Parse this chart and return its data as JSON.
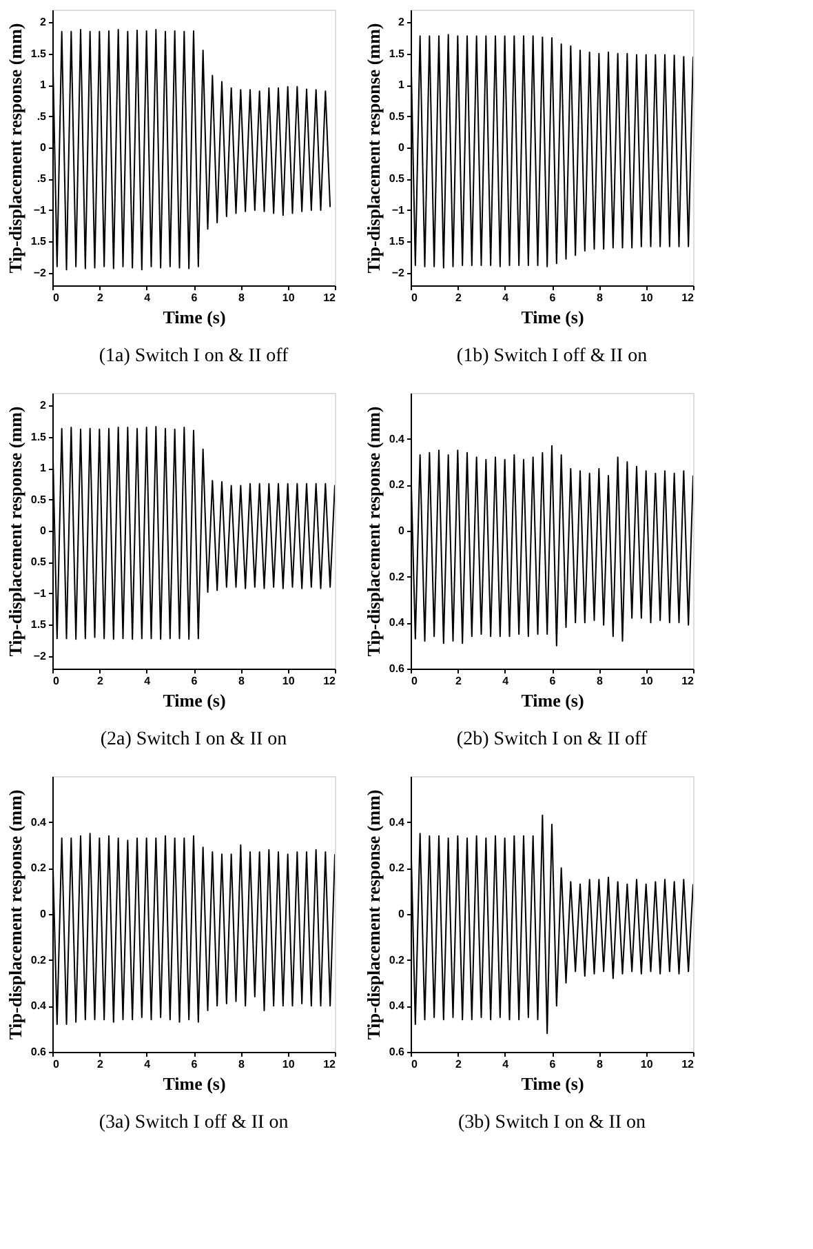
{
  "chart_data": [
    {
      "type": "line",
      "title": "(1a) Switch I on & II off",
      "xlabel": "Time (s)",
      "ylabel": "Tip-displacement response (mm)",
      "color": "#000000",
      "grid": false,
      "xlim": [
        0,
        12
      ],
      "xticks": [
        0,
        2,
        4,
        6,
        8,
        10,
        12
      ],
      "ylim": [
        -2.2,
        2.2
      ],
      "yticks": [
        2,
        1.5,
        1,
        {
          "value": 0.5,
          "label": ".5"
        },
        0,
        {
          "value": -0.5,
          "label": ".5"
        },
        -1,
        {
          "value": -1.5,
          "label": "1.5"
        },
        -2
      ],
      "x": [
        0,
        0.2,
        0.4,
        0.6,
        0.8,
        1,
        1.2,
        1.4,
        1.6,
        1.8,
        2,
        2.2,
        2.4,
        2.6,
        2.8,
        3,
        3.2,
        3.4,
        3.6,
        3.8,
        4,
        4.2,
        4.4,
        4.6,
        4.8,
        5,
        5.2,
        5.4,
        5.6,
        5.8,
        6,
        6.2,
        6.4,
        6.6,
        6.8,
        7,
        7.2,
        7.4,
        7.6,
        7.8,
        8,
        8.2,
        8.4,
        8.6,
        8.8,
        9,
        9.2,
        9.4,
        9.6,
        9.8,
        10,
        10.2,
        10.4,
        10.6,
        10.8,
        11,
        11.2,
        11.4,
        11.6,
        11.8
      ],
      "values": [
        1.8,
        -1.9,
        1.85,
        -1.95,
        1.85,
        -1.9,
        1.88,
        -1.93,
        1.85,
        -1.92,
        1.85,
        -1.9,
        1.86,
        -1.93,
        1.88,
        -1.9,
        1.85,
        -1.92,
        1.87,
        -1.95,
        1.86,
        -1.9,
        1.88,
        -1.92,
        1.85,
        -1.9,
        1.86,
        -1.92,
        1.85,
        -1.93,
        1.86,
        -1.9,
        1.55,
        -1.3,
        1.15,
        -1.2,
        1.05,
        -1.1,
        0.95,
        -1.05,
        0.92,
        -1.02,
        0.92,
        -1.0,
        0.9,
        -1.02,
        0.95,
        -1.05,
        0.95,
        -1.08,
        0.97,
        -1.05,
        0.97,
        -1.02,
        0.93,
        -1.0,
        0.92,
        -1.0,
        0.9,
        -0.95
      ]
    },
    {
      "type": "line",
      "title": "(1b) Switch I off & II on",
      "xlabel": "Time (s)",
      "ylabel": "Tip-displacement response (mm)",
      "color": "#000000",
      "grid": false,
      "xlim": [
        0,
        12
      ],
      "xticks": [
        0,
        2,
        4,
        6,
        8,
        10,
        12
      ],
      "ylim": [
        -2.2,
        2.2
      ],
      "yticks": [
        2,
        1.5,
        1,
        0.5,
        0,
        {
          "value": -0.5,
          "label": "0.5"
        },
        -1,
        {
          "value": -1.5,
          "label": "1.5"
        },
        -2
      ],
      "x": [
        0,
        0.2,
        0.4,
        0.6,
        0.8,
        1,
        1.2,
        1.4,
        1.6,
        1.8,
        2,
        2.2,
        2.4,
        2.6,
        2.8,
        3,
        3.2,
        3.4,
        3.6,
        3.8,
        4,
        4.2,
        4.4,
        4.6,
        4.8,
        5,
        5.2,
        5.4,
        5.6,
        5.8,
        6,
        6.2,
        6.4,
        6.6,
        6.8,
        7,
        7.2,
        7.4,
        7.6,
        7.8,
        8,
        8.2,
        8.4,
        8.6,
        8.8,
        9,
        9.2,
        9.4,
        9.6,
        9.8,
        10,
        10.2,
        10.4,
        10.6,
        10.8,
        11,
        11.2,
        11.4,
        11.6,
        11.8,
        12
      ],
      "values": [
        1.75,
        -1.88,
        1.78,
        -1.9,
        1.78,
        -1.9,
        1.78,
        -1.92,
        1.8,
        -1.9,
        1.78,
        -1.88,
        1.78,
        -1.88,
        1.78,
        -1.88,
        1.78,
        -1.88,
        1.78,
        -1.9,
        1.78,
        -1.88,
        1.78,
        -1.88,
        1.78,
        -1.88,
        1.78,
        -1.88,
        1.76,
        -1.9,
        1.75,
        -1.85,
        1.65,
        -1.78,
        1.62,
        -1.72,
        1.55,
        -1.65,
        1.52,
        -1.62,
        1.5,
        -1.62,
        1.52,
        -1.6,
        1.5,
        -1.6,
        1.5,
        -1.6,
        1.48,
        -1.58,
        1.48,
        -1.58,
        1.48,
        -1.58,
        1.48,
        -1.58,
        1.47,
        -1.58,
        1.45,
        -1.58,
        1.45
      ]
    },
    {
      "type": "line",
      "title": "(2a) Switch I on & II on",
      "xlabel": "Time (s)",
      "ylabel": "Tip-displacement response (mm)",
      "color": "#000000",
      "grid": false,
      "xlim": [
        0,
        12
      ],
      "xticks": [
        0,
        2,
        4,
        6,
        8,
        10,
        12
      ],
      "ylim": [
        -2.2,
        2.2
      ],
      "yticks": [
        2,
        1.5,
        1,
        0.5,
        0,
        {
          "value": -0.5,
          "label": "0.5"
        },
        -1,
        {
          "value": -1.5,
          "label": "1.5"
        },
        -2
      ],
      "x": [
        0,
        0.2,
        0.4,
        0.6,
        0.8,
        1,
        1.2,
        1.4,
        1.6,
        1.8,
        2,
        2.2,
        2.4,
        2.6,
        2.8,
        3,
        3.2,
        3.4,
        3.6,
        3.8,
        4,
        4.2,
        4.4,
        4.6,
        4.8,
        5,
        5.2,
        5.4,
        5.6,
        5.8,
        6,
        6.2,
        6.4,
        6.6,
        6.8,
        7,
        7.2,
        7.4,
        7.6,
        7.8,
        8,
        8.2,
        8.4,
        8.6,
        8.8,
        9,
        9.2,
        9.4,
        9.6,
        9.8,
        10,
        10.2,
        10.4,
        10.6,
        10.8,
        11,
        11.2,
        11.4,
        11.6,
        11.8,
        12
      ],
      "values": [
        1.62,
        -1.72,
        1.63,
        -1.72,
        1.65,
        -1.73,
        1.62,
        -1.72,
        1.63,
        -1.7,
        1.62,
        -1.72,
        1.63,
        -1.73,
        1.65,
        -1.72,
        1.65,
        -1.73,
        1.63,
        -1.72,
        1.65,
        -1.72,
        1.66,
        -1.73,
        1.63,
        -1.72,
        1.62,
        -1.72,
        1.65,
        -1.73,
        1.6,
        -1.72,
        1.3,
        -0.98,
        0.8,
        -0.95,
        0.78,
        -0.9,
        0.72,
        -0.9,
        0.72,
        -0.92,
        0.75,
        -0.9,
        0.75,
        -0.92,
        0.75,
        -0.9,
        0.75,
        -0.92,
        0.75,
        -0.9,
        0.75,
        -0.92,
        0.75,
        -0.9,
        0.75,
        -0.92,
        0.75,
        -0.9,
        0.73
      ]
    },
    {
      "type": "line",
      "title": "(2b) Switch I on & II off",
      "xlabel": "Time (s)",
      "ylabel": "Tip-displacement response (mm)",
      "color": "#000000",
      "grid": false,
      "xlim": [
        0,
        12
      ],
      "xticks": [
        0,
        2,
        4,
        6,
        8,
        10,
        12
      ],
      "ylim": [
        -0.6,
        0.6
      ],
      "yticks": [
        0.4,
        0.2,
        0,
        {
          "value": -0.2,
          "label": "0.2"
        },
        {
          "value": -0.4,
          "label": "0.4"
        },
        {
          "value": -0.6,
          "label": "0.6"
        }
      ],
      "x": [
        0,
        0.2,
        0.4,
        0.6,
        0.8,
        1,
        1.2,
        1.4,
        1.6,
        1.8,
        2,
        2.2,
        2.4,
        2.6,
        2.8,
        3,
        3.2,
        3.4,
        3.6,
        3.8,
        4,
        4.2,
        4.4,
        4.6,
        4.8,
        5,
        5.2,
        5.4,
        5.6,
        5.8,
        6,
        6.2,
        6.4,
        6.6,
        6.8,
        7,
        7.2,
        7.4,
        7.6,
        7.8,
        8,
        8.2,
        8.4,
        8.6,
        8.8,
        9,
        9.2,
        9.4,
        9.6,
        9.8,
        10,
        10.2,
        10.4,
        10.6,
        10.8,
        11,
        11.2,
        11.4,
        11.6,
        11.8,
        12
      ],
      "values": [
        0.31,
        -0.47,
        0.33,
        -0.48,
        0.34,
        -0.46,
        0.35,
        -0.49,
        0.33,
        -0.48,
        0.35,
        -0.49,
        0.34,
        -0.46,
        0.32,
        -0.45,
        0.31,
        -0.46,
        0.32,
        -0.46,
        0.31,
        -0.46,
        0.33,
        -0.45,
        0.31,
        -0.46,
        0.32,
        -0.45,
        0.34,
        -0.45,
        0.37,
        -0.5,
        0.33,
        -0.42,
        0.27,
        -0.4,
        0.26,
        -0.4,
        0.25,
        -0.39,
        0.27,
        -0.41,
        0.24,
        -0.46,
        0.32,
        -0.48,
        0.3,
        -0.38,
        0.28,
        -0.38,
        0.26,
        -0.4,
        0.25,
        -0.39,
        0.26,
        -0.4,
        0.25,
        -0.4,
        0.26,
        -0.41,
        0.24
      ]
    },
    {
      "type": "line",
      "title": "(3a) Switch I off & II on",
      "xlabel": "Time (s)",
      "ylabel": "Tip-displacement response (mm)",
      "color": "#000000",
      "grid": false,
      "xlim": [
        0,
        12
      ],
      "xticks": [
        0,
        2,
        4,
        6,
        8,
        10,
        12
      ],
      "ylim": [
        -0.6,
        0.6
      ],
      "yticks": [
        0.4,
        0.2,
        0,
        {
          "value": -0.2,
          "label": "0.2"
        },
        {
          "value": -0.4,
          "label": "0.4"
        },
        {
          "value": -0.6,
          "label": "0.6"
        }
      ],
      "x": [
        0,
        0.2,
        0.4,
        0.6,
        0.8,
        1,
        1.2,
        1.4,
        1.6,
        1.8,
        2,
        2.2,
        2.4,
        2.6,
        2.8,
        3,
        3.2,
        3.4,
        3.6,
        3.8,
        4,
        4.2,
        4.4,
        4.6,
        4.8,
        5,
        5.2,
        5.4,
        5.6,
        5.8,
        6,
        6.2,
        6.4,
        6.6,
        6.8,
        7,
        7.2,
        7.4,
        7.6,
        7.8,
        8,
        8.2,
        8.4,
        8.6,
        8.8,
        9,
        9.2,
        9.4,
        9.6,
        9.8,
        10,
        10.2,
        10.4,
        10.6,
        10.8,
        11,
        11.2,
        11.4,
        11.6,
        11.8,
        12
      ],
      "values": [
        0.31,
        -0.48,
        0.33,
        -0.48,
        0.33,
        -0.47,
        0.34,
        -0.46,
        0.35,
        -0.46,
        0.33,
        -0.46,
        0.34,
        -0.47,
        0.33,
        -0.46,
        0.32,
        -0.46,
        0.33,
        -0.45,
        0.33,
        -0.46,
        0.33,
        -0.45,
        0.34,
        -0.46,
        0.33,
        -0.47,
        0.33,
        -0.46,
        0.34,
        -0.47,
        0.29,
        -0.42,
        0.27,
        -0.4,
        0.26,
        -0.39,
        0.26,
        -0.38,
        0.3,
        -0.4,
        0.27,
        -0.36,
        0.27,
        -0.42,
        0.28,
        -0.4,
        0.27,
        -0.4,
        0.26,
        -0.4,
        0.27,
        -0.39,
        0.27,
        -0.4,
        0.28,
        -0.4,
        0.27,
        -0.4,
        0.26
      ]
    },
    {
      "type": "line",
      "title": "(3b) Switch I on & II on",
      "xlabel": "Time (s)",
      "ylabel": "Tip-displacement response (mm)",
      "color": "#000000",
      "grid": false,
      "xlim": [
        0,
        12
      ],
      "xticks": [
        0,
        2,
        4,
        6,
        8,
        10,
        12
      ],
      "ylim": [
        -0.6,
        0.6
      ],
      "yticks": [
        0.4,
        0.2,
        0,
        {
          "value": -0.2,
          "label": "0.2"
        },
        {
          "value": -0.4,
          "label": "0.4"
        },
        {
          "value": -0.6,
          "label": "0.6"
        }
      ],
      "x": [
        0,
        0.2,
        0.4,
        0.6,
        0.8,
        1,
        1.2,
        1.4,
        1.6,
        1.8,
        2,
        2.2,
        2.4,
        2.6,
        2.8,
        3,
        3.2,
        3.4,
        3.6,
        3.8,
        4,
        4.2,
        4.4,
        4.6,
        4.8,
        5,
        5.2,
        5.4,
        5.6,
        5.8,
        6,
        6.2,
        6.4,
        6.6,
        6.8,
        7,
        7.2,
        7.4,
        7.6,
        7.8,
        8,
        8.2,
        8.4,
        8.6,
        8.8,
        9,
        9.2,
        9.4,
        9.6,
        9.8,
        10,
        10.2,
        10.4,
        10.6,
        10.8,
        11,
        11.2,
        11.4,
        11.6,
        11.8,
        12
      ],
      "values": [
        0.37,
        -0.48,
        0.35,
        -0.46,
        0.34,
        -0.45,
        0.34,
        -0.46,
        0.33,
        -0.45,
        0.34,
        -0.46,
        0.33,
        -0.46,
        0.34,
        -0.45,
        0.33,
        -0.46,
        0.34,
        -0.45,
        0.33,
        -0.46,
        0.34,
        -0.46,
        0.34,
        -0.45,
        0.34,
        -0.46,
        0.43,
        -0.52,
        0.39,
        -0.4,
        0.2,
        -0.3,
        0.14,
        -0.25,
        0.13,
        -0.27,
        0.15,
        -0.26,
        0.15,
        -0.25,
        0.16,
        -0.28,
        0.14,
        -0.26,
        0.13,
        -0.25,
        0.15,
        -0.26,
        0.13,
        -0.25,
        0.14,
        -0.26,
        0.15,
        -0.25,
        0.14,
        -0.26,
        0.15,
        -0.25,
        0.13
      ]
    }
  ]
}
